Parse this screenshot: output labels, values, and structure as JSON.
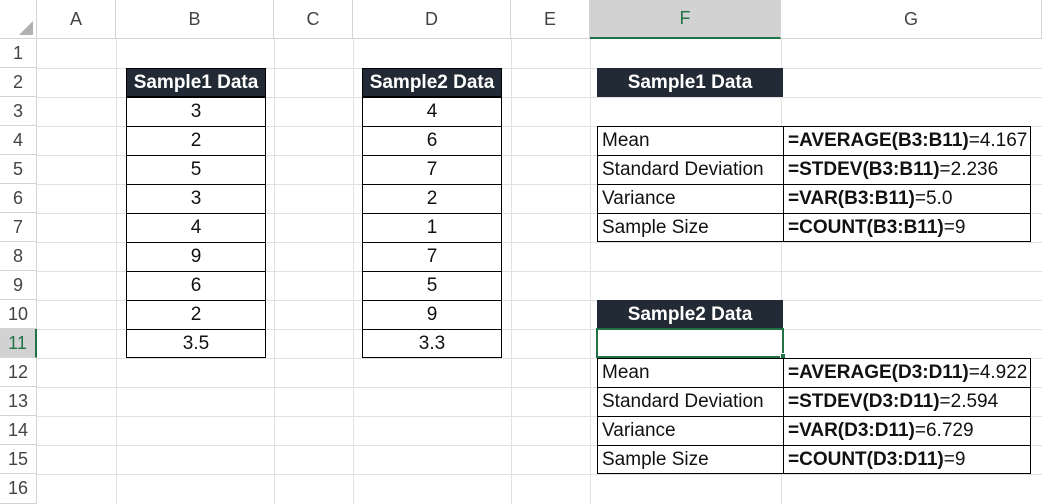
{
  "column_headers": [
    "A",
    "B",
    "C",
    "D",
    "E",
    "F",
    "G"
  ],
  "row_headers": [
    "1",
    "2",
    "3",
    "4",
    "5",
    "6",
    "7",
    "8",
    "9",
    "10",
    "11",
    "12",
    "13",
    "14",
    "15",
    "16"
  ],
  "sample1": {
    "header": "Sample1 Data",
    "values": [
      "3",
      "2",
      "5",
      "3",
      "4",
      "9",
      "6",
      "2",
      "3.5"
    ]
  },
  "sample2": {
    "header": "Sample2 Data",
    "values": [
      "4",
      "6",
      "7",
      "2",
      "1",
      "7",
      "5",
      "9",
      "3.3"
    ]
  },
  "stats1": {
    "title": "Sample1 Data",
    "rows": [
      {
        "label": "Mean",
        "formula": "=AVERAGE(B3:B11)",
        "result": "=4.167"
      },
      {
        "label": "Standard Deviation",
        "formula": "=STDEV(B3:B11)",
        "result": "=2.236"
      },
      {
        "label": "Variance",
        "formula": "=VAR(B3:B11)",
        "result": "=5.0"
      },
      {
        "label": "Sample Size",
        "formula": "=COUNT(B3:B11)",
        "result": "=9"
      }
    ]
  },
  "stats2": {
    "title": "Sample2 Data",
    "rows": [
      {
        "label": "Mean",
        "formula": "=AVERAGE(D3:D11)",
        "result": "=4.922"
      },
      {
        "label": "Standard Deviation",
        "formula": "=STDEV(D3:D11)",
        "result": "=2.594"
      },
      {
        "label": "Variance",
        "formula": "=VAR(D3:D11)",
        "result": "=6.729"
      },
      {
        "label": "Sample Size",
        "formula": "=COUNT(D3:D11)",
        "result": "=9"
      }
    ]
  },
  "selection": {
    "column": "F",
    "row": "11"
  },
  "colors": {
    "header_dark": "#222b35",
    "selection_green": "#217346",
    "gridline": "#e1e1e1"
  }
}
